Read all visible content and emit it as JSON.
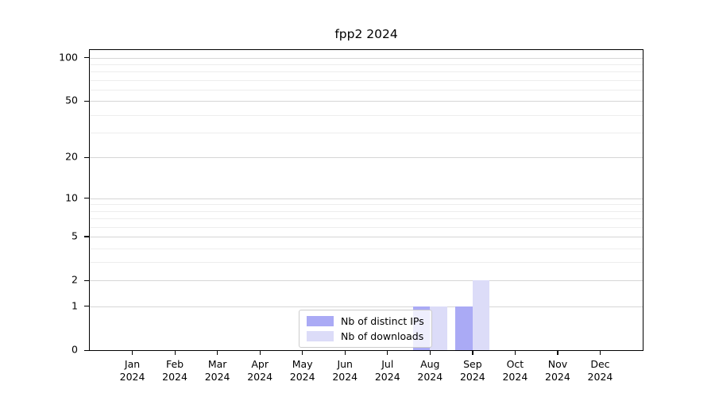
{
  "chart_data": {
    "type": "bar",
    "title": "fpp2 2024",
    "categories": [
      "Jan",
      "Feb",
      "Mar",
      "Apr",
      "May",
      "Jun",
      "Jul",
      "Aug",
      "Sep",
      "Oct",
      "Nov",
      "Dec"
    ],
    "year_label": "2024",
    "series": [
      {
        "name": "Nb of distinct IPs",
        "color": "#aaaaf5",
        "values": [
          0,
          0,
          0,
          0,
          0,
          0,
          0,
          1,
          1,
          0,
          0,
          0
        ]
      },
      {
        "name": "Nb of downloads",
        "color": "#dcdcf8",
        "values": [
          0,
          0,
          0,
          0,
          0,
          0,
          0,
          1,
          2,
          0,
          0,
          0
        ]
      }
    ],
    "xlabel": "",
    "ylabel": "",
    "y_axis": {
      "scale": "log1p",
      "ticks": [
        0,
        1,
        2,
        5,
        10,
        20,
        50,
        100
      ],
      "minor_gridlines": [
        3,
        4,
        6,
        7,
        8,
        9,
        30,
        40,
        60,
        70,
        80,
        90
      ],
      "ylim": [
        0,
        113
      ]
    },
    "grid": true,
    "legend": {
      "position": "lower center"
    },
    "bar_width_fraction": 0.4
  }
}
